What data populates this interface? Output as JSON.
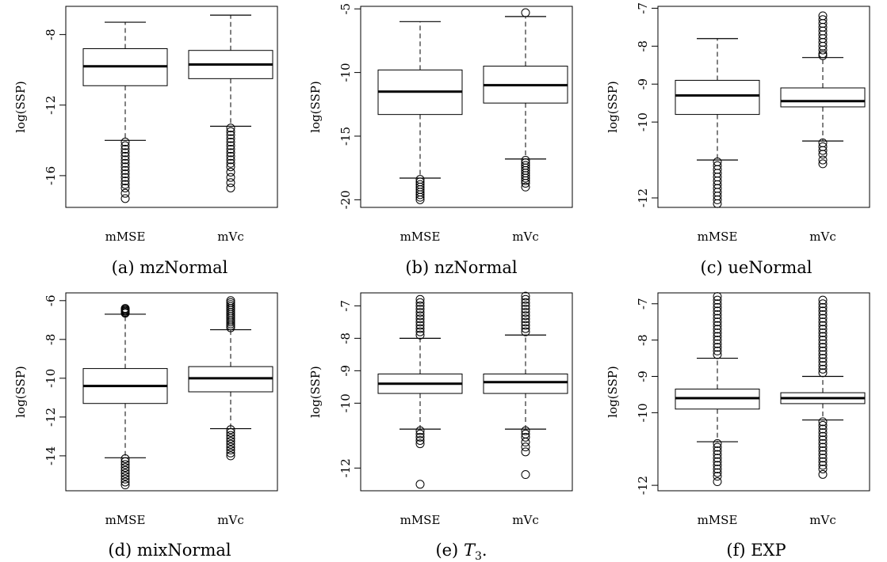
{
  "chart_data": [
    {
      "type": "boxplot",
      "caption": "(a) mzNormal",
      "ylabel": "log(SSP)",
      "ylim": [
        -17.8,
        -6.4
      ],
      "yticks": [
        -8,
        -12,
        -16
      ],
      "categories": [
        "mMSE",
        "mVc"
      ],
      "boxes": [
        {
          "whisker_low": -14.0,
          "q1": -10.9,
          "median": -9.8,
          "q3": -8.8,
          "whisker_high": -7.3,
          "outliers": [
            -14.1,
            -14.3,
            -14.5,
            -14.7,
            -14.9,
            -15.1,
            -15.3,
            -15.5,
            -15.7,
            -15.9,
            -16.1,
            -16.3,
            -16.5,
            -16.7,
            -17.0,
            -17.3
          ]
        },
        {
          "whisker_low": -13.2,
          "q1": -10.5,
          "median": -9.7,
          "q3": -8.9,
          "whisker_high": -6.9,
          "outliers": [
            -13.3,
            -13.5,
            -13.7,
            -13.9,
            -14.1,
            -14.3,
            -14.5,
            -14.7,
            -14.9,
            -15.1,
            -15.3,
            -15.5,
            -15.8,
            -16.1,
            -16.4,
            -16.7
          ]
        }
      ]
    },
    {
      "type": "boxplot",
      "caption": "(b) nzNormal",
      "ylabel": "log(SSP)",
      "ylim": [
        -20.6,
        -4.8
      ],
      "yticks": [
        -5,
        -10,
        -15,
        -20
      ],
      "categories": [
        "mMSE",
        "mVc"
      ],
      "boxes": [
        {
          "whisker_low": -18.3,
          "q1": -13.3,
          "median": -11.5,
          "q3": -9.8,
          "whisker_high": -6.0,
          "outliers": [
            -18.4,
            -18.6,
            -18.8,
            -19.0,
            -19.2,
            -19.4,
            -19.6,
            -19.8,
            -20.0
          ]
        },
        {
          "whisker_low": -16.8,
          "q1": -12.4,
          "median": -11.0,
          "q3": -9.5,
          "whisker_high": -5.6,
          "outliers": [
            -5.3,
            -16.9,
            -17.1,
            -17.3,
            -17.5,
            -17.7,
            -17.9,
            -18.1,
            -18.3,
            -18.5,
            -18.7,
            -19.0
          ]
        }
      ]
    },
    {
      "type": "boxplot",
      "caption": "(c) ueNormal",
      "ylabel": "log(SSP)",
      "ylim": [
        -12.25,
        -6.95
      ],
      "yticks": [
        -7,
        -8,
        -9,
        -10,
        -12
      ],
      "categories": [
        "mMSE",
        "mVc"
      ],
      "boxes": [
        {
          "whisker_low": -11.0,
          "q1": -9.8,
          "median": -9.3,
          "q3": -8.9,
          "whisker_high": -7.8,
          "outliers": [
            -11.05,
            -11.15,
            -11.25,
            -11.35,
            -11.45,
            -11.55,
            -11.65,
            -11.75,
            -11.85,
            -11.95,
            -12.05,
            -12.15
          ]
        },
        {
          "whisker_low": -10.5,
          "q1": -9.6,
          "median": -9.45,
          "q3": -9.1,
          "whisker_high": -8.3,
          "outliers": [
            -7.2,
            -7.3,
            -7.4,
            -7.5,
            -7.6,
            -7.7,
            -7.8,
            -7.9,
            -8.0,
            -8.1,
            -8.2,
            -8.25,
            -10.55,
            -10.65,
            -10.75,
            -10.85,
            -11.0,
            -11.1
          ]
        }
      ]
    },
    {
      "type": "boxplot",
      "caption": "(d) mixNormal",
      "ylabel": "log(SSP)",
      "ylim": [
        -15.8,
        -5.6
      ],
      "yticks": [
        -6,
        -8,
        -10,
        -12,
        -14
      ],
      "categories": [
        "mMSE",
        "mVc"
      ],
      "boxes": [
        {
          "whisker_low": -14.1,
          "q1": -11.3,
          "median": -10.4,
          "q3": -9.5,
          "whisker_high": -6.7,
          "outliers": [
            -6.4,
            -6.45,
            -6.5,
            -6.55,
            -6.6,
            -6.65,
            -14.15,
            -14.3,
            -14.45,
            -14.6,
            -14.75,
            -14.9,
            -15.05,
            -15.2,
            -15.35,
            -15.5
          ]
        },
        {
          "whisker_low": -12.6,
          "q1": -10.7,
          "median": -10.0,
          "q3": -9.4,
          "whisker_high": -7.5,
          "outliers": [
            -6.0,
            -6.1,
            -6.2,
            -6.3,
            -6.4,
            -6.5,
            -6.6,
            -6.7,
            -6.8,
            -6.9,
            -7.0,
            -7.1,
            -7.2,
            -7.3,
            -7.4,
            -12.65,
            -12.8,
            -12.95,
            -13.1,
            -13.25,
            -13.4,
            -13.55,
            -13.7,
            -13.85,
            -14.0
          ]
        }
      ]
    },
    {
      "type": "boxplot",
      "caption": "(e) T3.",
      "caption_prefix": "(e) ",
      "caption_var": "T",
      "caption_sub": "3",
      "caption_suffix": ".",
      "ylabel": "log(SSP)",
      "ylim": [
        -12.7,
        -6.6
      ],
      "yticks": [
        -7,
        -8,
        -9,
        -10,
        -12
      ],
      "categories": [
        "mMSE",
        "mVc"
      ],
      "boxes": [
        {
          "whisker_low": -10.8,
          "q1": -9.7,
          "median": -9.4,
          "q3": -9.1,
          "whisker_high": -8.0,
          "outliers": [
            -6.8,
            -6.9,
            -7.0,
            -7.1,
            -7.2,
            -7.3,
            -7.4,
            -7.5,
            -7.6,
            -7.7,
            -7.8,
            -7.9,
            -10.85,
            -10.95,
            -11.05,
            -11.15,
            -11.25,
            -12.5
          ]
        },
        {
          "whisker_low": -10.8,
          "q1": -9.7,
          "median": -9.35,
          "q3": -9.1,
          "whisker_high": -7.9,
          "outliers": [
            -6.7,
            -6.8,
            -6.9,
            -7.0,
            -7.1,
            -7.2,
            -7.3,
            -7.4,
            -7.5,
            -7.6,
            -7.7,
            -7.8,
            -10.85,
            -10.95,
            -11.05,
            -11.2,
            -11.35,
            -11.5,
            -12.2
          ]
        }
      ]
    },
    {
      "type": "boxplot",
      "caption": "(f) EXP",
      "ylabel": "log(SSP)",
      "ylim": [
        -12.15,
        -6.7
      ],
      "yticks": [
        -7,
        -8,
        -9,
        -10,
        -12
      ],
      "categories": [
        "mMSE",
        "mVc"
      ],
      "boxes": [
        {
          "whisker_low": -10.8,
          "q1": -9.9,
          "median": -9.6,
          "q3": -9.35,
          "whisker_high": -8.5,
          "outliers": [
            -6.8,
            -6.9,
            -7.0,
            -7.1,
            -7.2,
            -7.3,
            -7.4,
            -7.5,
            -7.6,
            -7.7,
            -7.8,
            -7.9,
            -8.0,
            -8.1,
            -8.2,
            -8.3,
            -8.4,
            -10.85,
            -10.95,
            -11.05,
            -11.15,
            -11.25,
            -11.35,
            -11.45,
            -11.55,
            -11.65,
            -11.75,
            -11.9
          ]
        },
        {
          "whisker_low": -10.2,
          "q1": -9.75,
          "median": -9.6,
          "q3": -9.45,
          "whisker_high": -9.0,
          "outliers": [
            -6.9,
            -7.0,
            -7.1,
            -7.2,
            -7.3,
            -7.4,
            -7.5,
            -7.6,
            -7.7,
            -7.8,
            -7.9,
            -8.0,
            -8.1,
            -8.2,
            -8.3,
            -8.4,
            -8.5,
            -8.6,
            -8.7,
            -8.8,
            -8.9,
            -10.25,
            -10.35,
            -10.45,
            -10.55,
            -10.65,
            -10.75,
            -10.85,
            -10.95,
            -11.05,
            -11.15,
            -11.25,
            -11.35,
            -11.45,
            -11.55,
            -11.7
          ]
        }
      ]
    }
  ]
}
